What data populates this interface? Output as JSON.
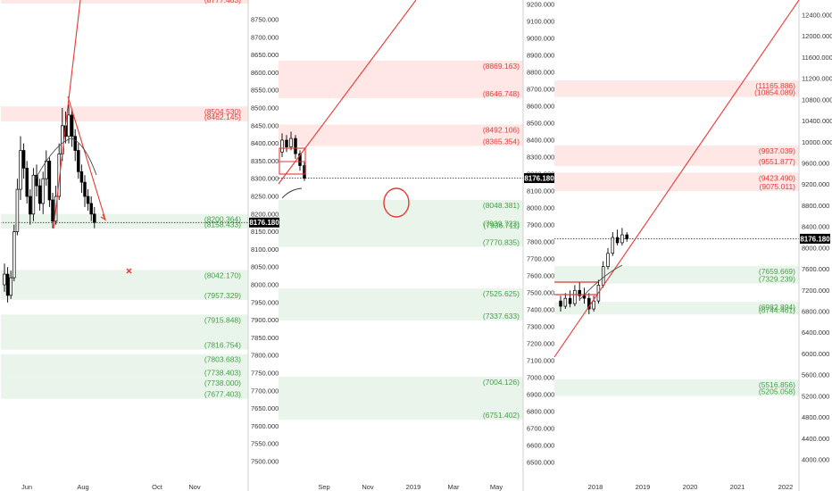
{
  "chart_data": [
    {
      "type": "candlestick",
      "title": "",
      "ylim": [
        7430,
        8760
      ],
      "ylabel": "",
      "y_ticks": [
        "8750.000",
        "8700.000",
        "8650.000",
        "8600.000",
        "8550.000",
        "8500.000",
        "8450.000",
        "8400.000",
        "8350.000",
        "8300.000",
        "8250.000",
        "8200.000",
        "8150.000",
        "8100.000",
        "8050.000",
        "8000.000",
        "7950.000",
        "7900.000",
        "7850.000",
        "7800.000",
        "7750.000",
        "7700.000",
        "7650.000",
        "7600.000",
        "7550.000",
        "7500.000"
      ],
      "x_ticks": [
        "Jun",
        "Aug",
        "Oct",
        "Nov"
      ],
      "price_badge": "8176.180",
      "top_partial_label": "(8777.463)",
      "zones": [
        {
          "color": "red",
          "top": 8504.53,
          "bottom": 8462.145,
          "labels": [
            "(8504.530)",
            "(8462.145)"
          ]
        },
        {
          "color": "green",
          "top": 8200.364,
          "bottom": 8158.433,
          "labels": [
            "(8200.364)",
            "(8158.433)"
          ]
        },
        {
          "color": "green",
          "top": 8042.17,
          "bottom": 7957.329,
          "labels": [
            "(8042.170)",
            "(7957.329)"
          ]
        },
        {
          "color": "green",
          "top": 7915.848,
          "bottom": 7816.754,
          "labels": [
            "(7915.848)",
            "(7816.754)"
          ]
        },
        {
          "color": "green",
          "top": 7803.683,
          "bottom": 7738.403,
          "labels": [
            "(7803.683)",
            "(7738.403)"
          ]
        },
        {
          "color": "green",
          "top": 7738.0,
          "bottom": 7677.403,
          "labels": [
            "(7738.000)",
            "(7677.403)"
          ]
        }
      ],
      "candles": [
        {
          "open": 8000,
          "close": 8030,
          "low": 7980,
          "high": 8060
        },
        {
          "open": 8030,
          "close": 7970,
          "low": 7950,
          "high": 8050
        },
        {
          "open": 7970,
          "close": 8020,
          "low": 7960,
          "high": 8040
        },
        {
          "open": 8020,
          "close": 8150,
          "low": 8010,
          "high": 8170
        },
        {
          "open": 8150,
          "close": 8270,
          "low": 8140,
          "high": 8300
        },
        {
          "open": 8270,
          "close": 8380,
          "low": 8240,
          "high": 8420
        },
        {
          "open": 8380,
          "close": 8330,
          "low": 8300,
          "high": 8400
        },
        {
          "open": 8330,
          "close": 8250,
          "low": 8230,
          "high": 8350
        },
        {
          "open": 8250,
          "close": 8200,
          "low": 8170,
          "high": 8270
        },
        {
          "open": 8200,
          "close": 8310,
          "low": 8180,
          "high": 8330
        },
        {
          "open": 8310,
          "close": 8280,
          "low": 8250,
          "high": 8340
        },
        {
          "open": 8280,
          "close": 8230,
          "low": 8210,
          "high": 8300
        },
        {
          "open": 8230,
          "close": 8300,
          "low": 8200,
          "high": 8320
        },
        {
          "open": 8300,
          "close": 8350,
          "low": 8280,
          "high": 8380
        },
        {
          "open": 8350,
          "close": 8240,
          "low": 8220,
          "high": 8360
        },
        {
          "open": 8240,
          "close": 8180,
          "low": 8160,
          "high": 8260
        },
        {
          "open": 8180,
          "close": 8250,
          "low": 8170,
          "high": 8280
        },
        {
          "open": 8250,
          "close": 8370,
          "low": 8240,
          "high": 8400
        },
        {
          "open": 8370,
          "close": 8450,
          "low": 8350,
          "high": 8500
        },
        {
          "open": 8450,
          "close": 8420,
          "low": 8400,
          "high": 8490
        },
        {
          "open": 8420,
          "close": 8480,
          "low": 8400,
          "high": 8510
        },
        {
          "open": 8480,
          "close": 8420,
          "low": 8390,
          "high": 8495
        },
        {
          "open": 8420,
          "close": 8380,
          "low": 8350,
          "high": 8440
        },
        {
          "open": 8380,
          "close": 8320,
          "low": 8300,
          "high": 8400
        },
        {
          "open": 8320,
          "close": 8290,
          "low": 8260,
          "high": 8340
        },
        {
          "open": 8290,
          "close": 8250,
          "low": 8220,
          "high": 8310
        },
        {
          "open": 8250,
          "close": 8230,
          "low": 8210,
          "high": 8270
        },
        {
          "open": 8230,
          "close": 8200,
          "low": 8180,
          "high": 8250
        },
        {
          "open": 8200,
          "close": 8176,
          "low": 8160,
          "high": 8220
        }
      ]
    },
    {
      "type": "candlestick",
      "title": "",
      "ylim": [
        6400,
        9300
      ],
      "ylabel": "",
      "y_ticks": [
        "9200.000",
        "9100.000",
        "9000.000",
        "8900.000",
        "8800.000",
        "8700.000",
        "8600.000",
        "8500.000",
        "8400.000",
        "8300.000",
        "8200.000",
        "8100.000",
        "8000.000",
        "7900.000",
        "7800.000",
        "7700.000",
        "7600.000",
        "7500.000",
        "7400.000",
        "7300.000",
        "7200.000",
        "7100.000",
        "7000.000",
        "6900.000",
        "6800.000",
        "6700.000",
        "6600.000",
        "6500.000"
      ],
      "x_ticks": [
        "Sep",
        "Nov",
        "2019",
        "Mar",
        "May"
      ],
      "price_badge": "8176.180",
      "zones": [
        {
          "color": "red",
          "top": 8869.163,
          "bottom": 8646.748,
          "labels": [
            "(8869.163)",
            "(8646.748)"
          ]
        },
        {
          "color": "red",
          "top": 8492.106,
          "bottom": 8365.354,
          "labels": [
            "(8492.106)",
            "(8365.354)"
          ]
        },
        {
          "color": "green",
          "top": 8048.381,
          "bottom": 7940.0,
          "labels": [
            "(8048.381)"
          ]
        },
        {
          "color": "green",
          "top": 7939.723,
          "bottom": 7770.835,
          "labels": [
            "(7939.723)",
            "(7936.711)",
            "(7770.835)"
          ]
        },
        {
          "color": "green",
          "top": 7525.625,
          "bottom": 7337.633,
          "labels": [
            "(7525.625)",
            "(7337.633)"
          ]
        },
        {
          "color": "green",
          "top": 7004.126,
          "bottom": 6751.402,
          "labels": [
            "(7004.126)",
            "(6751.402)"
          ]
        }
      ],
      "candles": [
        {
          "open": 8330,
          "close": 8400,
          "low": 8300,
          "high": 8440
        },
        {
          "open": 8400,
          "close": 8360,
          "low": 8330,
          "high": 8430
        },
        {
          "open": 8360,
          "close": 8410,
          "low": 8340,
          "high": 8450
        },
        {
          "open": 8410,
          "close": 8320,
          "low": 8290,
          "high": 8430
        },
        {
          "open": 8320,
          "close": 8250,
          "low": 8220,
          "high": 8340
        },
        {
          "open": 8250,
          "close": 8176,
          "low": 8160,
          "high": 8270
        }
      ]
    },
    {
      "type": "candlestick",
      "title": "",
      "ylim": [
        3400,
        12700
      ],
      "ylabel": "",
      "y_ticks": [
        "12400.000",
        "12000.000",
        "11600.000",
        "11200.000",
        "10800.000",
        "10400.000",
        "10000.000",
        "9600.000",
        "9200.000",
        "8800.000",
        "8400.000",
        "8000.000",
        "7600.000",
        "7200.000",
        "6800.000",
        "6400.000",
        "6000.000",
        "5600.000",
        "5200.000",
        "4800.000",
        "4400.000",
        "4000.000"
      ],
      "x_ticks": [
        "2018",
        "2019",
        "2020",
        "2021",
        "2022"
      ],
      "price_badge": "8176.180",
      "zones": [
        {
          "color": "red",
          "top": 11165.886,
          "bottom": 10854.089,
          "labels": [
            "(11165.886)",
            "(10854.089)"
          ]
        },
        {
          "color": "red",
          "top": 9937.039,
          "bottom": 9551.877,
          "labels": [
            "(9937.039)",
            "(9551.877)"
          ]
        },
        {
          "color": "red",
          "top": 9423.49,
          "bottom": 9075.011,
          "labels": [
            "(9423.490)",
            "(9075.011)"
          ]
        },
        {
          "color": "green",
          "top": 7659.669,
          "bottom": 7329.239,
          "labels": [
            "(7659.669)",
            "(7329.239)"
          ]
        },
        {
          "color": "green",
          "top": 6982.894,
          "bottom": 6744.461,
          "labels": [
            "(6982.894)",
            "(6744.461)"
          ]
        },
        {
          "color": "green",
          "top": 5516.856,
          "bottom": 5205.058,
          "labels": [
            "(5516.856)",
            "(5205.058)"
          ]
        }
      ],
      "candles": [
        {
          "open": 7000,
          "close": 6900,
          "low": 6800,
          "high": 7100
        },
        {
          "open": 6900,
          "close": 7050,
          "low": 6850,
          "high": 7150
        },
        {
          "open": 7050,
          "close": 6950,
          "low": 6880,
          "high": 7200
        },
        {
          "open": 6950,
          "close": 7200,
          "low": 6900,
          "high": 7300
        },
        {
          "open": 7200,
          "close": 7100,
          "low": 7000,
          "high": 7350
        },
        {
          "open": 7100,
          "close": 7050,
          "low": 6950,
          "high": 7250
        },
        {
          "open": 7050,
          "close": 6850,
          "low": 6750,
          "high": 7150
        },
        {
          "open": 6850,
          "close": 7000,
          "low": 6800,
          "high": 7100
        },
        {
          "open": 7000,
          "close": 7300,
          "low": 6950,
          "high": 7400
        },
        {
          "open": 7300,
          "close": 7650,
          "low": 7250,
          "high": 7750
        },
        {
          "open": 7650,
          "close": 7900,
          "low": 7600,
          "high": 8000
        },
        {
          "open": 7900,
          "close": 8200,
          "low": 7850,
          "high": 8300
        },
        {
          "open": 8200,
          "close": 8100,
          "low": 8050,
          "high": 8350
        },
        {
          "open": 8100,
          "close": 8250,
          "low": 8050,
          "high": 8380
        },
        {
          "open": 8250,
          "close": 8176,
          "low": 8120,
          "high": 8300
        }
      ]
    }
  ]
}
